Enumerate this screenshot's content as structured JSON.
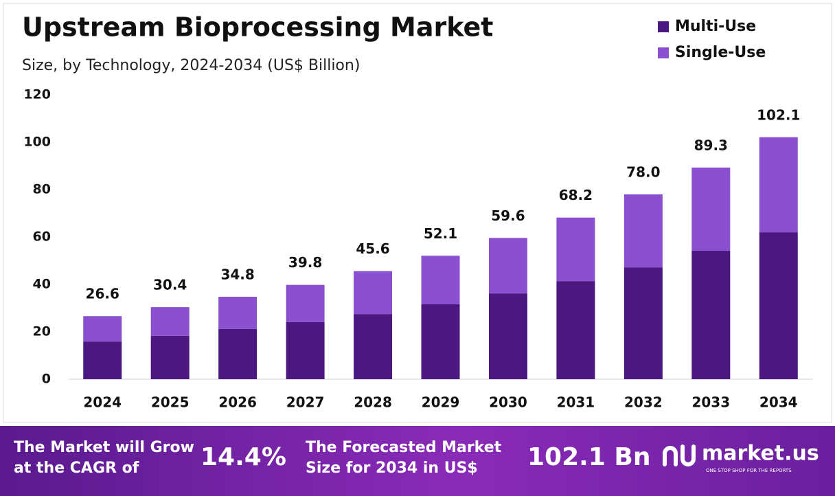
{
  "chart_data": {
    "type": "stacked_bar",
    "title": "Upstream Bioprocessing Market",
    "subtitle": "Size, by Technology, 2024-2034 (US$ Billion)",
    "categories": [
      "2024",
      "2025",
      "2026",
      "2027",
      "2028",
      "2029",
      "2030",
      "2031",
      "2032",
      "2033",
      "2034"
    ],
    "series": [
      {
        "name": "Multi-Use",
        "color": "#4b1781",
        "values": [
          15.9,
          18.3,
          21.2,
          24.1,
          27.5,
          31.6,
          36.2,
          41.4,
          47.2,
          54.2,
          62.0
        ]
      },
      {
        "name": "Single-Use",
        "color": "#8a50cf",
        "values": [
          10.7,
          12.1,
          13.6,
          15.7,
          18.1,
          20.5,
          23.4,
          26.8,
          30.8,
          35.1,
          40.1
        ]
      }
    ],
    "totals": [
      26.6,
      30.4,
      34.8,
      39.8,
      45.6,
      52.1,
      59.6,
      68.2,
      78.0,
      89.3,
      102.1
    ],
    "total_labels": [
      "26.6",
      "30.4",
      "34.8",
      "39.8",
      "45.6",
      "52.1",
      "59.6",
      "68.2",
      "78.0",
      "89.3",
      "102.1"
    ],
    "ylim": [
      0,
      120
    ],
    "yticks": [
      0,
      20,
      40,
      60,
      80,
      100,
      120
    ],
    "grid": false,
    "legend": "top-right"
  },
  "footer": {
    "cagr_text": [
      "The Market will Grow",
      "at the CAGR of"
    ],
    "cagr_value": "14.4%",
    "forecast_text": [
      "The Forecasted Market",
      "Size for 2034 in US$"
    ],
    "forecast_value": "102.1 Bn",
    "brand": "market.us",
    "tagline": "ONE STOP SHOP FOR THE REPORTS"
  }
}
